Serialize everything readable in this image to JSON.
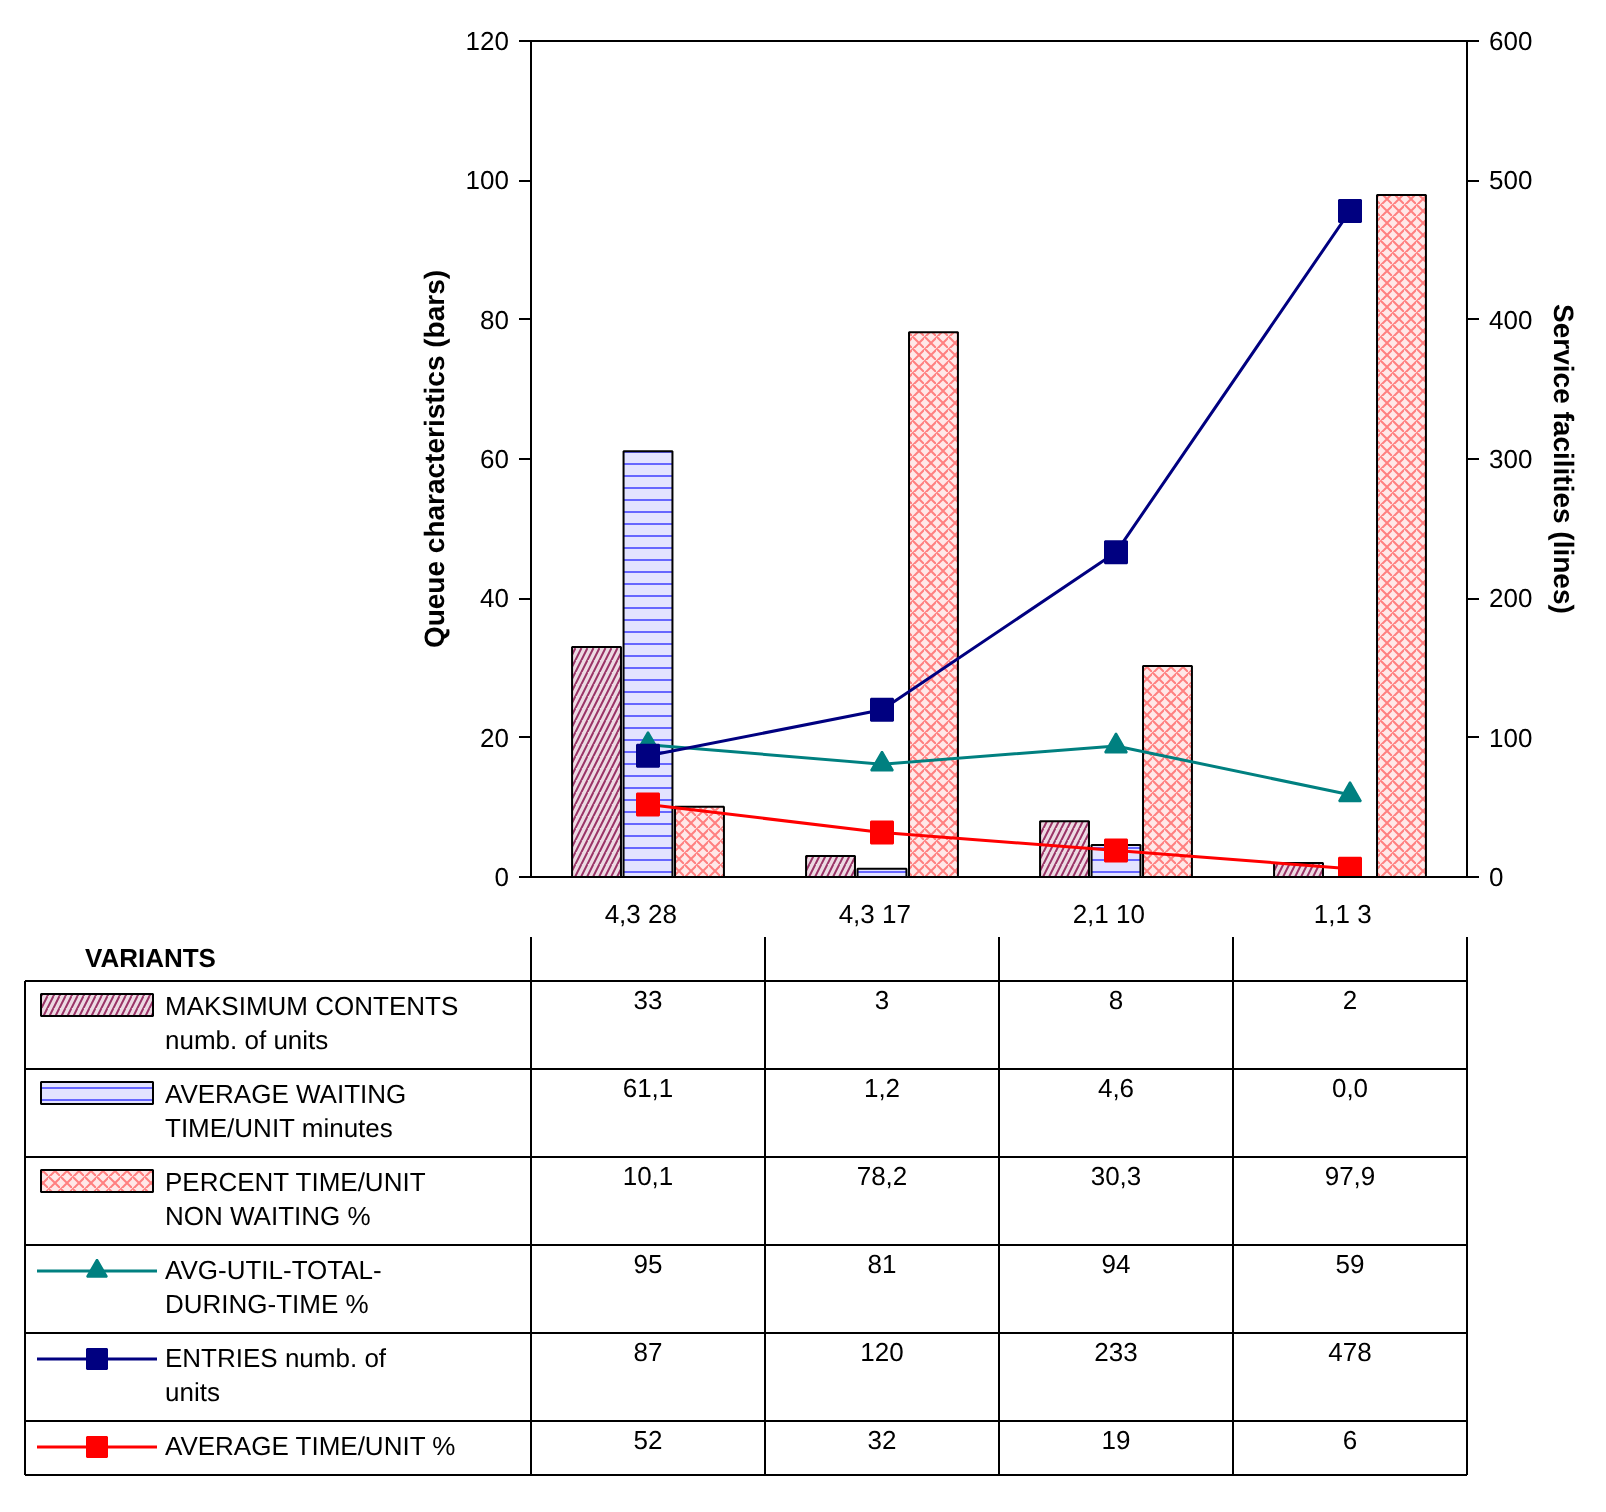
{
  "chart_data": {
    "type": "bar",
    "categories": [
      "4,3   28",
      "4,3   17",
      "2,1   10",
      "1,1   3"
    ],
    "ylabel": "Queue characteristics (bars)",
    "y2label": "Service facilities (lines)",
    "ylim": [
      0,
      120
    ],
    "yticks": [
      0,
      20,
      40,
      60,
      80,
      100,
      120
    ],
    "y2lim": [
      0,
      600
    ],
    "y2ticks": [
      0,
      100,
      200,
      300,
      400,
      500,
      600
    ],
    "grid": false,
    "legend": "bottom",
    "data_labels": true,
    "annotations": [
      "VARIANTS"
    ],
    "series": [
      {
        "name": "MAKSIMUM CONTENTS numb. of units",
        "color": "#993366",
        "values": [
          33,
          3,
          8,
          2
        ],
        "value_labels": [
          "33",
          "3",
          "8",
          "2"
        ]
      },
      {
        "name": "AVERAGE WAITING TIME/UNIT minutes",
        "color": "#6666ff",
        "values": [
          61.1,
          1.2,
          4.6,
          0.0
        ],
        "value_labels": [
          "61,1",
          "1,2",
          "4,6",
          "0,0"
        ]
      },
      {
        "name": "PERCENT TIME/UNIT NON WAITING %",
        "color": "#ff8080",
        "values": [
          10.1,
          78.2,
          30.3,
          97.9
        ],
        "value_labels": [
          "10,1",
          "78,2",
          "30,3",
          "97,9"
        ]
      },
      {
        "name": "AVG-UTIL-TOTAL-DURING-TIME %",
        "type": "line",
        "axis": "y2",
        "marker": "triangle",
        "color": "#008080",
        "values": [
          95,
          81,
          94,
          59
        ],
        "value_labels": [
          "95",
          "81",
          "94",
          "59"
        ]
      },
      {
        "name": "ENTRIES numb. of units",
        "type": "line",
        "axis": "y2",
        "marker": "square",
        "color": "#000080",
        "values": [
          87,
          120,
          233,
          478
        ],
        "value_labels": [
          "87",
          "120",
          "233",
          "478"
        ]
      },
      {
        "name": "AVERAGE TIME/UNIT %",
        "type": "line",
        "axis": "y2",
        "marker": "square",
        "color": "#ff0000",
        "values": [
          52,
          32,
          19,
          6
        ],
        "value_labels": [
          "52",
          "32",
          "19",
          "6"
        ]
      }
    ]
  }
}
